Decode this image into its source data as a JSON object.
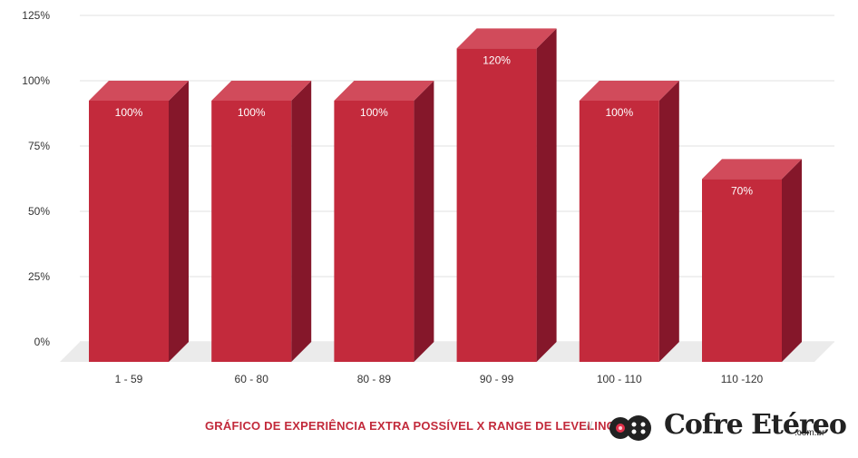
{
  "chart_data": {
    "type": "bar",
    "categories": [
      "1 - 59",
      "60 - 80",
      "80 - 89",
      "90 - 99",
      "100 - 110",
      "110 -120"
    ],
    "values": [
      100,
      100,
      100,
      120,
      100,
      70
    ],
    "data_labels": [
      "100%",
      "100%",
      "100%",
      "120%",
      "100%",
      "70%"
    ],
    "yticks": [
      "0%",
      "25%",
      "50%",
      "75%",
      "100%",
      "125%"
    ],
    "ylim": [
      0,
      125
    ],
    "grid": true,
    "style": "3d",
    "colors": {
      "front": "#c32a3c",
      "side": "#85172a",
      "top": "#d14b5b",
      "floor": "#ebebeb",
      "grid": "#e2e2e2"
    }
  },
  "footer": {
    "caption": "GRÁFICO DE EXPERIÊNCIA EXTRA POSSÍVEL X RANGE DE LEVELING",
    "separator": "//",
    "logo_text": "Cofre Etéreo",
    "logo_suffix": ".com.br",
    "logo_icon": "gamepad-icon"
  }
}
